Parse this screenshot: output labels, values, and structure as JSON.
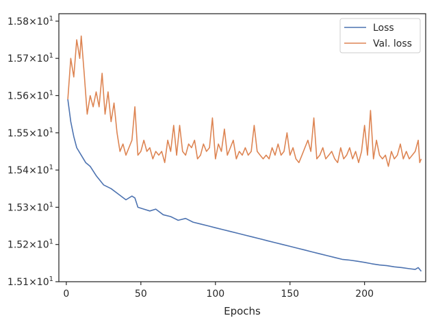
{
  "chart_data": {
    "type": "line",
    "title": "",
    "xlabel": "Epochs",
    "ylabel": "",
    "xlim": [
      -5,
      241
    ],
    "ylim": [
      15.1,
      15.82
    ],
    "x_ticks": [
      0,
      50,
      100,
      150,
      200
    ],
    "x_tick_labels": [
      "0",
      "50",
      "100",
      "150",
      "200"
    ],
    "y_ticks": [
      15.1,
      15.2,
      15.3,
      15.4,
      15.5,
      15.6,
      15.7,
      15.8
    ],
    "y_tick_labels": [
      {
        "mantissa": "1.51",
        "times": "×",
        "base": "10",
        "exp": "1"
      },
      {
        "mantissa": "1.52",
        "times": "×",
        "base": "10",
        "exp": "1"
      },
      {
        "mantissa": "1.53",
        "times": "×",
        "base": "10",
        "exp": "1"
      },
      {
        "mantissa": "1.54",
        "times": "×",
        "base": "10",
        "exp": "1"
      },
      {
        "mantissa": "1.55",
        "times": "×",
        "base": "10",
        "exp": "1"
      },
      {
        "mantissa": "1.56",
        "times": "×",
        "base": "10",
        "exp": "1"
      },
      {
        "mantissa": "1.57",
        "times": "×",
        "base": "10",
        "exp": "1"
      },
      {
        "mantissa": "1.58",
        "times": "×",
        "base": "10",
        "exp": "1"
      }
    ],
    "grid": false,
    "legend_position": "top-right",
    "series": [
      {
        "name": "Loss",
        "color": "#4c72b0",
        "points": [
          [
            1,
            15.59
          ],
          [
            3,
            15.53
          ],
          [
            5,
            15.49
          ],
          [
            7,
            15.46
          ],
          [
            10,
            15.44
          ],
          [
            13,
            15.42
          ],
          [
            16,
            15.41
          ],
          [
            20,
            15.385
          ],
          [
            25,
            15.36
          ],
          [
            30,
            15.35
          ],
          [
            35,
            15.335
          ],
          [
            40,
            15.32
          ],
          [
            44,
            15.33
          ],
          [
            46,
            15.325
          ],
          [
            48,
            15.3
          ],
          [
            52,
            15.295
          ],
          [
            56,
            15.29
          ],
          [
            60,
            15.295
          ],
          [
            65,
            15.28
          ],
          [
            70,
            15.275
          ],
          [
            75,
            15.265
          ],
          [
            80,
            15.27
          ],
          [
            85,
            15.26
          ],
          [
            90,
            15.255
          ],
          [
            95,
            15.25
          ],
          [
            100,
            15.245
          ],
          [
            105,
            15.24
          ],
          [
            110,
            15.235
          ],
          [
            115,
            15.23
          ],
          [
            120,
            15.225
          ],
          [
            125,
            15.22
          ],
          [
            130,
            15.215
          ],
          [
            135,
            15.21
          ],
          [
            140,
            15.205
          ],
          [
            145,
            15.2
          ],
          [
            150,
            15.195
          ],
          [
            155,
            15.19
          ],
          [
            160,
            15.185
          ],
          [
            165,
            15.18
          ],
          [
            170,
            15.175
          ],
          [
            175,
            15.17
          ],
          [
            180,
            15.165
          ],
          [
            185,
            15.16
          ],
          [
            190,
            15.158
          ],
          [
            195,
            15.155
          ],
          [
            200,
            15.152
          ],
          [
            205,
            15.148
          ],
          [
            210,
            15.145
          ],
          [
            215,
            15.143
          ],
          [
            220,
            15.14
          ],
          [
            225,
            15.138
          ],
          [
            230,
            15.135
          ],
          [
            234,
            15.133
          ],
          [
            236,
            15.138
          ],
          [
            238,
            15.128
          ]
        ]
      },
      {
        "name": "Val. loss",
        "color": "#dd8452",
        "points": [
          [
            1,
            15.59
          ],
          [
            3,
            15.7
          ],
          [
            5,
            15.65
          ],
          [
            7,
            15.75
          ],
          [
            9,
            15.7
          ],
          [
            10,
            15.76
          ],
          [
            12,
            15.66
          ],
          [
            14,
            15.55
          ],
          [
            16,
            15.6
          ],
          [
            18,
            15.57
          ],
          [
            20,
            15.61
          ],
          [
            22,
            15.57
          ],
          [
            24,
            15.66
          ],
          [
            26,
            15.55
          ],
          [
            28,
            15.61
          ],
          [
            30,
            15.53
          ],
          [
            32,
            15.58
          ],
          [
            34,
            15.5
          ],
          [
            36,
            15.45
          ],
          [
            38,
            15.47
          ],
          [
            40,
            15.44
          ],
          [
            42,
            15.46
          ],
          [
            44,
            15.48
          ],
          [
            46,
            15.57
          ],
          [
            48,
            15.44
          ],
          [
            50,
            15.45
          ],
          [
            52,
            15.48
          ],
          [
            54,
            15.45
          ],
          [
            56,
            15.46
          ],
          [
            58,
            15.43
          ],
          [
            60,
            15.45
          ],
          [
            62,
            15.44
          ],
          [
            64,
            15.45
          ],
          [
            66,
            15.42
          ],
          [
            68,
            15.48
          ],
          [
            70,
            15.45
          ],
          [
            72,
            15.52
          ],
          [
            74,
            15.44
          ],
          [
            76,
            15.52
          ],
          [
            78,
            15.45
          ],
          [
            80,
            15.44
          ],
          [
            82,
            15.47
          ],
          [
            84,
            15.46
          ],
          [
            86,
            15.48
          ],
          [
            88,
            15.43
          ],
          [
            90,
            15.44
          ],
          [
            92,
            15.47
          ],
          [
            94,
            15.45
          ],
          [
            96,
            15.46
          ],
          [
            98,
            15.54
          ],
          [
            100,
            15.43
          ],
          [
            102,
            15.47
          ],
          [
            104,
            15.45
          ],
          [
            106,
            15.51
          ],
          [
            108,
            15.44
          ],
          [
            110,
            15.46
          ],
          [
            112,
            15.48
          ],
          [
            114,
            15.43
          ],
          [
            116,
            15.45
          ],
          [
            118,
            15.44
          ],
          [
            120,
            15.46
          ],
          [
            122,
            15.44
          ],
          [
            124,
            15.45
          ],
          [
            126,
            15.52
          ],
          [
            128,
            15.45
          ],
          [
            130,
            15.44
          ],
          [
            132,
            15.43
          ],
          [
            134,
            15.44
          ],
          [
            136,
            15.43
          ],
          [
            138,
            15.46
          ],
          [
            140,
            15.44
          ],
          [
            142,
            15.47
          ],
          [
            144,
            15.44
          ],
          [
            146,
            15.45
          ],
          [
            148,
            15.5
          ],
          [
            150,
            15.44
          ],
          [
            152,
            15.46
          ],
          [
            154,
            15.43
          ],
          [
            156,
            15.42
          ],
          [
            158,
            15.44
          ],
          [
            160,
            15.46
          ],
          [
            162,
            15.48
          ],
          [
            164,
            15.45
          ],
          [
            166,
            15.54
          ],
          [
            168,
            15.43
          ],
          [
            170,
            15.44
          ],
          [
            172,
            15.46
          ],
          [
            174,
            15.43
          ],
          [
            176,
            15.44
          ],
          [
            178,
            15.45
          ],
          [
            180,
            15.43
          ],
          [
            182,
            15.42
          ],
          [
            184,
            15.46
          ],
          [
            186,
            15.43
          ],
          [
            188,
            15.44
          ],
          [
            190,
            15.46
          ],
          [
            192,
            15.43
          ],
          [
            194,
            15.45
          ],
          [
            196,
            15.42
          ],
          [
            198,
            15.45
          ],
          [
            200,
            15.52
          ],
          [
            202,
            15.44
          ],
          [
            204,
            15.56
          ],
          [
            206,
            15.43
          ],
          [
            208,
            15.48
          ],
          [
            210,
            15.44
          ],
          [
            212,
            15.43
          ],
          [
            214,
            15.44
          ],
          [
            216,
            15.41
          ],
          [
            218,
            15.45
          ],
          [
            220,
            15.43
          ],
          [
            222,
            15.44
          ],
          [
            224,
            15.47
          ],
          [
            226,
            15.43
          ],
          [
            228,
            15.45
          ],
          [
            230,
            15.43
          ],
          [
            232,
            15.44
          ],
          [
            234,
            15.45
          ],
          [
            236,
            15.48
          ],
          [
            237,
            15.42
          ],
          [
            238,
            15.43
          ]
        ]
      }
    ]
  }
}
